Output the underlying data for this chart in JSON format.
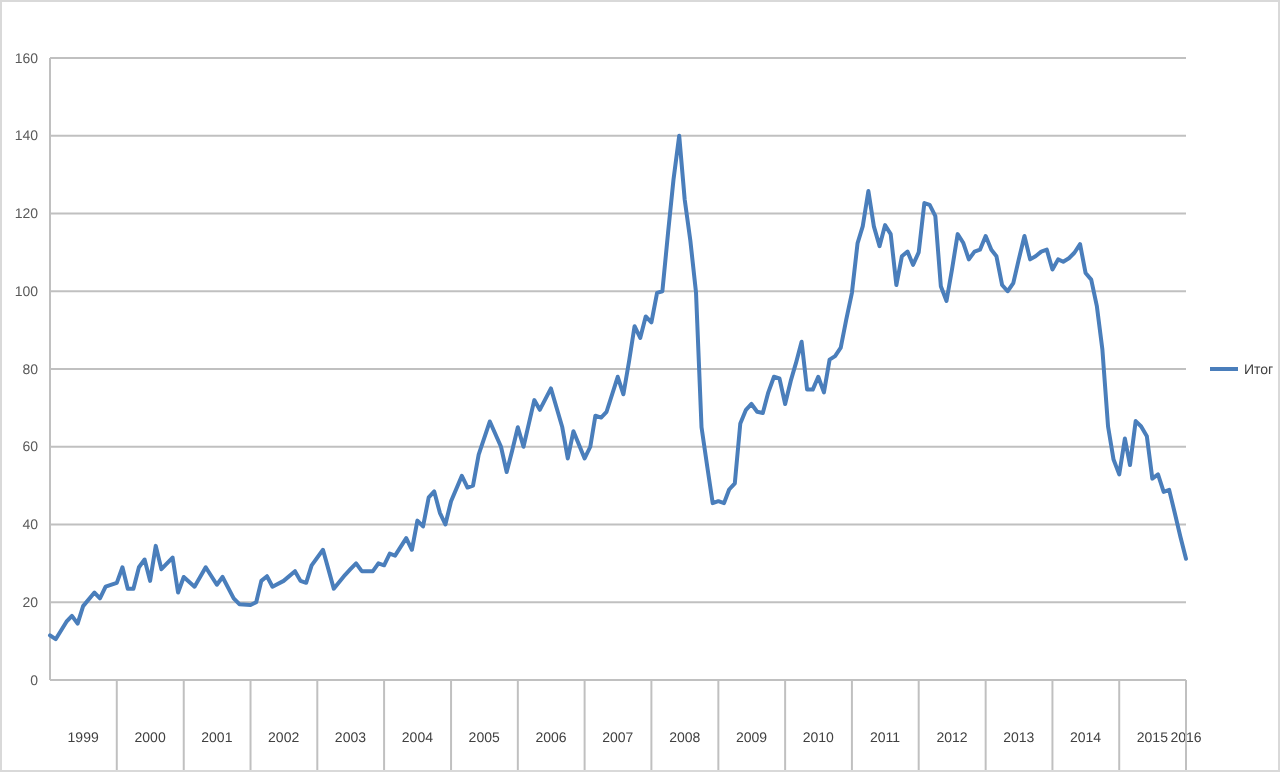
{
  "chart_data": {
    "type": "line",
    "legend": "right",
    "grid": "y",
    "marker": "none",
    "line_style": "solid",
    "x": [
      "1999-01",
      "1999-02",
      "1999-04",
      "1999-05",
      "1999-06",
      "1999-07",
      "1999-09",
      "1999-10",
      "1999-11",
      "2000-01",
      "2000-02",
      "2000-03",
      "2000-04",
      "2000-05",
      "2000-06",
      "2000-07",
      "2000-08",
      "2000-09",
      "2000-11",
      "2000-12",
      "2001-01",
      "2001-03",
      "2001-05",
      "2001-07",
      "2001-08",
      "2001-10",
      "2001-11",
      "2002-01",
      "2002-02",
      "2002-03",
      "2002-04",
      "2002-05",
      "2002-07",
      "2002-09",
      "2002-10",
      "2002-11",
      "2002-12",
      "2003-02",
      "2003-04",
      "2003-06",
      "2003-07",
      "2003-08",
      "2003-09",
      "2003-11",
      "2003-12",
      "2004-01",
      "2004-02",
      "2004-03",
      "2004-05",
      "2004-06",
      "2004-07",
      "2004-08",
      "2004-09",
      "2004-10",
      "2004-11",
      "2004-12",
      "2005-01",
      "2005-03",
      "2005-04",
      "2005-05",
      "2005-06",
      "2005-08",
      "2005-10",
      "2005-11",
      "2005-12",
      "2006-01",
      "2006-02",
      "2006-04",
      "2006-05",
      "2006-07",
      "2006-09",
      "2006-10",
      "2006-11",
      "2007-01",
      "2007-02",
      "2007-03",
      "2007-04",
      "2007-05",
      "2007-07",
      "2007-08",
      "2007-09",
      "2007-10",
      "2007-11",
      "2007-12",
      "2008-01",
      "2008-02",
      "2008-03",
      "2008-04",
      "2008-05",
      "2008-06",
      "2008-07",
      "2008-08",
      "2008-09",
      "2008-10",
      "2008-11",
      "2008-12",
      "2009-01",
      "2009-02",
      "2009-03",
      "2009-04",
      "2009-05",
      "2009-06",
      "2009-07",
      "2009-08",
      "2009-09",
      "2009-10",
      "2009-11",
      "2009-12",
      "2010-01",
      "2010-02",
      "2010-03",
      "2010-04",
      "2010-05",
      "2010-06",
      "2010-07",
      "2010-08",
      "2010-09",
      "2010-10",
      "2010-11",
      "2010-12",
      "2011-01",
      "2011-02",
      "2011-03",
      "2011-04",
      "2011-05",
      "2011-06",
      "2011-07",
      "2011-08",
      "2011-09",
      "2011-10",
      "2011-11",
      "2011-12",
      "2012-01",
      "2012-02",
      "2012-03",
      "2012-04",
      "2012-05",
      "2012-06",
      "2012-07",
      "2012-08",
      "2012-09",
      "2012-10",
      "2012-11",
      "2012-12",
      "2013-01",
      "2013-02",
      "2013-03",
      "2013-04",
      "2013-05",
      "2013-06",
      "2013-07",
      "2013-08",
      "2013-09",
      "2013-10",
      "2013-11",
      "2013-12",
      "2014-01",
      "2014-02",
      "2014-03",
      "2014-04",
      "2014-05",
      "2014-06",
      "2014-07",
      "2014-08",
      "2014-09",
      "2014-10",
      "2014-11",
      "2014-12",
      "2015-01",
      "2015-02",
      "2015-03",
      "2015-04",
      "2015-05",
      "2015-06",
      "2015-07",
      "2015-08",
      "2015-09",
      "2015-10",
      "2015-11",
      "2015-12",
      "2016-01"
    ],
    "series": [
      {
        "name": "Итог",
        "color": "#4a7ebb",
        "values": [
          11.5,
          10.5,
          15,
          16.5,
          14.5,
          19,
          22.5,
          21,
          24,
          25,
          29,
          23.5,
          23.5,
          29,
          31,
          25.5,
          34.5,
          28.5,
          31.5,
          22.5,
          26.5,
          24,
          29,
          24.5,
          26.5,
          21,
          19.5,
          19.3,
          20,
          25.5,
          26.7,
          24,
          25.5,
          28,
          25.5,
          25,
          29.5,
          33.5,
          23.5,
          27,
          28.5,
          30,
          28,
          28,
          30,
          29.5,
          32.5,
          32,
          36.5,
          33.5,
          41,
          39.5,
          47,
          48.5,
          43,
          40,
          46,
          52.5,
          49.5,
          50,
          58,
          66.5,
          60,
          53.5,
          59,
          65,
          60,
          72,
          69.5,
          75,
          65,
          57,
          64,
          57,
          60,
          68,
          67.5,
          69,
          78,
          73.5,
          82,
          91,
          88,
          93.5,
          92,
          99.6,
          100,
          115,
          128.8,
          140,
          123.6,
          113,
          99.6,
          65,
          55,
          45.5,
          46,
          45.5,
          49,
          50.6,
          66,
          69.5,
          71,
          69,
          68.7,
          74,
          78,
          77.6,
          71,
          77,
          81.5,
          87,
          74.7,
          74.7,
          78,
          74,
          82.4,
          83.3,
          85.5,
          92.7,
          99.6,
          112.4,
          116.7,
          125.8,
          116.7,
          111.6,
          117,
          114.7,
          101.6,
          109,
          110.2,
          106.8,
          110,
          122.7,
          122.2,
          119.3,
          101.3,
          97.5,
          105.6,
          114.7,
          112.4,
          108.2,
          110.2,
          110.7,
          114.2,
          110.7,
          109,
          101.6,
          100,
          102.1,
          108.2,
          114.2,
          108.2,
          109,
          110.2,
          110.7,
          105.6,
          108.2,
          107.6,
          108.5,
          109.9,
          112.1,
          104.7,
          103,
          96.1,
          85,
          65.2,
          56.7,
          52.9,
          62.1,
          55.3,
          66.6,
          65.2,
          62.7,
          51.8,
          52.9,
          48.4,
          48.9,
          42.9,
          36.9,
          31.2
        ]
      }
    ],
    "xlim": [
      "1999-01",
      "2016-01"
    ],
    "xticks": [
      {
        "value": "1999-07",
        "label": "1999"
      },
      {
        "value": "2000-07",
        "label": "2000"
      },
      {
        "value": "2001-07",
        "label": "2001"
      },
      {
        "value": "2002-07",
        "label": "2002"
      },
      {
        "value": "2003-07",
        "label": "2003"
      },
      {
        "value": "2004-07",
        "label": "2004"
      },
      {
        "value": "2005-07",
        "label": "2005"
      },
      {
        "value": "2006-07",
        "label": "2006"
      },
      {
        "value": "2007-07",
        "label": "2007"
      },
      {
        "value": "2008-07",
        "label": "2008"
      },
      {
        "value": "2009-07",
        "label": "2009"
      },
      {
        "value": "2010-07",
        "label": "2010"
      },
      {
        "value": "2011-07",
        "label": "2011"
      },
      {
        "value": "2012-07",
        "label": "2012"
      },
      {
        "value": "2013-07",
        "label": "2013"
      },
      {
        "value": "2014-07",
        "label": "2014"
      },
      {
        "value": "2015-07",
        "label": "2015"
      },
      {
        "value": "2016-01",
        "label": "2016"
      }
    ],
    "ylim": [
      0,
      160
    ],
    "yticks": [
      0,
      20,
      40,
      60,
      80,
      100,
      120,
      140,
      160
    ]
  }
}
